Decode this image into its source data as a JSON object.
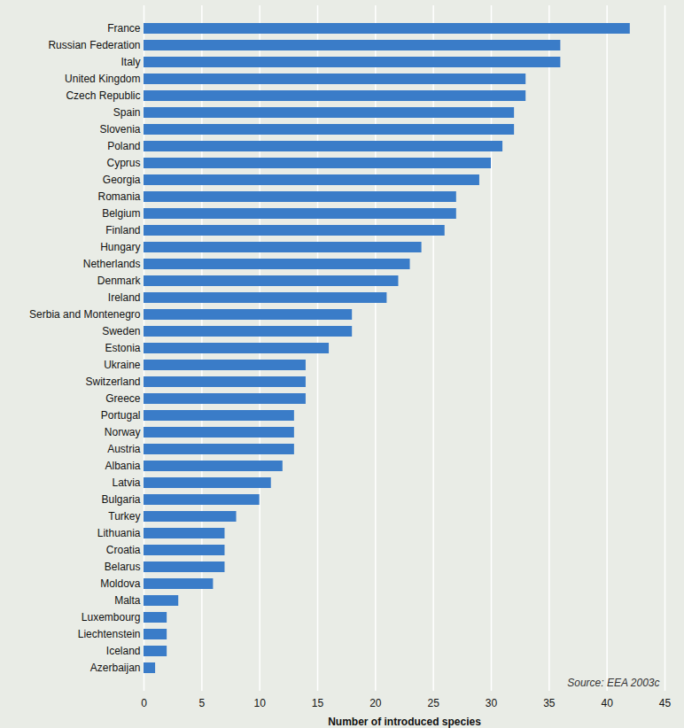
{
  "chart_data": {
    "type": "bar",
    "orientation": "horizontal",
    "categories": [
      "France",
      "Russian Federation",
      "Italy",
      "United Kingdom",
      "Czech Republic",
      "Spain",
      "Slovenia",
      "Poland",
      "Cyprus",
      "Georgia",
      "Romania",
      "Belgium",
      "Finland",
      "Hungary",
      "Netherlands",
      "Denmark",
      "Ireland",
      "Serbia and Montenegro",
      "Sweden",
      "Estonia",
      "Ukraine",
      "Switzerland",
      "Greece",
      "Portugal",
      "Norway",
      "Austria",
      "Albania",
      "Latvia",
      "Bulgaria",
      "Turkey",
      "Lithuania",
      "Croatia",
      "Belarus",
      "Moldova",
      "Malta",
      "Luxembourg",
      "Liechtenstein",
      "Iceland",
      "Azerbaijan"
    ],
    "values": [
      42,
      36,
      36,
      33,
      33,
      32,
      32,
      31,
      30,
      29,
      27,
      27,
      26,
      24,
      23,
      22,
      21,
      18,
      18,
      16,
      14,
      14,
      14,
      13,
      13,
      13,
      12,
      11,
      10,
      8,
      7,
      7,
      7,
      6,
      3,
      2,
      2,
      2,
      1
    ],
    "color": "#3a7cc8",
    "xlabel": "Number of introduced species",
    "xlim": [
      0,
      45
    ],
    "xticks": [
      0,
      5,
      10,
      15,
      20,
      25,
      30,
      35,
      40,
      45
    ],
    "grid": true,
    "annotation": "Source: EEA 2003c"
  }
}
